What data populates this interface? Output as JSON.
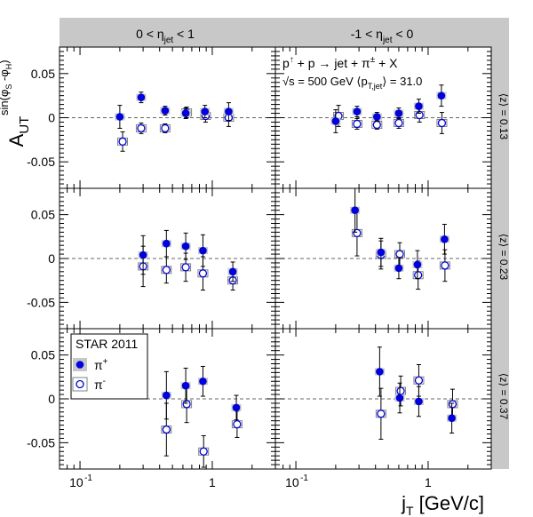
{
  "chart_data": {
    "type": "scatter",
    "x_scale": "log",
    "xlim": [
      0.07,
      3.0
    ],
    "ylim": [
      -0.08,
      0.08
    ],
    "grid": false,
    "legend_position": "bottom-left panel",
    "xlabel_main": "j",
    "xlabel_sub": "T",
    "xlabel_rest": " [GeV/c]",
    "ylabel_main": "A",
    "ylabel_sub": "UT",
    "ylabel_sup": "sin(φ",
    "ylabel_sup_s": "S",
    "ylabel_sup_mid": " -φ",
    "ylabel_sup_h": "H",
    "ylabel_sup_end": ")",
    "x_tick_labels": [
      "10",
      "-1",
      "1",
      "10",
      "-1",
      "1"
    ],
    "y_tick_labels": [
      "0.05",
      "0",
      "-0.05"
    ],
    "col_headers": [
      {
        "pre": "0 < η",
        "sub": "jet",
        "post": " < 1"
      },
      {
        "pre": "-1 < η",
        "sub": "jet",
        "post": " < 0"
      }
    ],
    "row_headers": [
      "⟨z⟩ = 0.13",
      "⟨z⟩ = 0.23",
      "⟨z⟩ = 0.37"
    ],
    "annotation_line1": {
      "pre": "p",
      "sup1": "↑",
      "mid": " + p → jet + π",
      "sup2": "±",
      "post": " + X"
    },
    "annotation_line2": {
      "pre": "√s = 500 GeV ⟨p",
      "sub": "T,jet",
      "post": "⟩ = 31.0"
    },
    "legend": {
      "title": "STAR 2011",
      "entries": [
        {
          "label": "π",
          "sup": "+",
          "marker": "filled"
        },
        {
          "label": "π",
          "sup": "-",
          "marker": "open"
        }
      ]
    },
    "series_colors": {
      "pi_plus": "#0000dd",
      "pi_minus": "#0000dd",
      "box_fill": "#c8c8c8",
      "box_stroke": "#808080"
    },
    "panels": [
      {
        "row": 0,
        "col": 0,
        "pi_plus": [
          [
            0.2,
            0.001,
            0.013
          ],
          [
            0.29,
            0.023,
            0.006
          ],
          [
            0.44,
            0.008,
            0.005
          ],
          [
            0.63,
            0.005,
            0.006
          ],
          [
            0.88,
            0.007,
            0.007
          ],
          [
            1.33,
            0.007,
            0.01
          ]
        ],
        "pi_minus": [
          [
            0.21,
            -0.027,
            0.011
          ],
          [
            0.29,
            -0.012,
            0.006
          ],
          [
            0.44,
            -0.012,
            0.005
          ],
          [
            0.64,
            0.006,
            0.006
          ],
          [
            0.89,
            0.002,
            0.007
          ],
          [
            1.33,
            0.0,
            0.01
          ]
        ]
      },
      {
        "row": 0,
        "col": 1,
        "pi_plus": [
          [
            0.2,
            -0.004,
            0.013
          ],
          [
            0.29,
            0.007,
            0.006
          ],
          [
            0.41,
            0.001,
            0.005
          ],
          [
            0.6,
            0.005,
            0.006
          ],
          [
            0.85,
            0.013,
            0.008
          ],
          [
            1.26,
            0.025,
            0.012
          ]
        ],
        "pi_minus": [
          [
            0.21,
            0.002,
            0.012
          ],
          [
            0.29,
            -0.007,
            0.006
          ],
          [
            0.41,
            -0.008,
            0.005
          ],
          [
            0.6,
            -0.006,
            0.006
          ],
          [
            0.86,
            0.003,
            0.008
          ],
          [
            1.27,
            -0.006,
            0.012
          ]
        ]
      },
      {
        "row": 1,
        "col": 0,
        "pi_plus": [
          [
            0.3,
            0.004,
            0.022
          ],
          [
            0.45,
            0.017,
            0.015
          ],
          [
            0.63,
            0.014,
            0.015
          ],
          [
            0.85,
            0.009,
            0.018
          ],
          [
            1.43,
            -0.015,
            0.011
          ]
        ],
        "pi_minus": [
          [
            0.3,
            -0.009,
            0.023
          ],
          [
            0.45,
            -0.013,
            0.015
          ],
          [
            0.63,
            -0.01,
            0.016
          ],
          [
            0.85,
            -0.017,
            0.019
          ],
          [
            1.43,
            -0.025,
            0.011
          ]
        ]
      },
      {
        "row": 1,
        "col": 1,
        "pi_plus": [
          [
            0.28,
            0.055,
            0.025
          ],
          [
            0.44,
            0.007,
            0.016
          ],
          [
            0.6,
            -0.011,
            0.012
          ],
          [
            0.83,
            -0.007,
            0.016
          ],
          [
            1.33,
            0.022,
            0.017
          ]
        ],
        "pi_minus": [
          [
            0.29,
            0.029,
            0.026
          ],
          [
            0.44,
            0.004,
            0.016
          ],
          [
            0.61,
            0.005,
            0.013
          ],
          [
            0.84,
            -0.019,
            0.016
          ],
          [
            1.34,
            -0.008,
            0.018
          ]
        ]
      },
      {
        "row": 2,
        "col": 0,
        "pi_plus": [
          [
            0.45,
            0.004,
            0.027
          ],
          [
            0.63,
            0.015,
            0.02
          ],
          [
            0.85,
            0.02,
            0.017
          ],
          [
            1.52,
            -0.01,
            0.014
          ]
        ],
        "pi_minus": [
          [
            0.45,
            -0.035,
            0.03
          ],
          [
            0.64,
            -0.006,
            0.021
          ],
          [
            0.86,
            -0.06,
            0.018
          ],
          [
            1.54,
            -0.029,
            0.015
          ]
        ]
      },
      {
        "row": 2,
        "col": 1,
        "pi_plus": [
          [
            0.43,
            0.031,
            0.028
          ],
          [
            0.61,
            0.001,
            0.017
          ],
          [
            0.85,
            -0.003,
            0.017
          ],
          [
            1.51,
            -0.022,
            0.017
          ]
        ],
        "pi_minus": [
          [
            0.44,
            -0.017,
            0.029
          ],
          [
            0.62,
            0.009,
            0.017
          ],
          [
            0.85,
            0.021,
            0.018
          ],
          [
            1.53,
            -0.006,
            0.017
          ]
        ]
      }
    ]
  }
}
